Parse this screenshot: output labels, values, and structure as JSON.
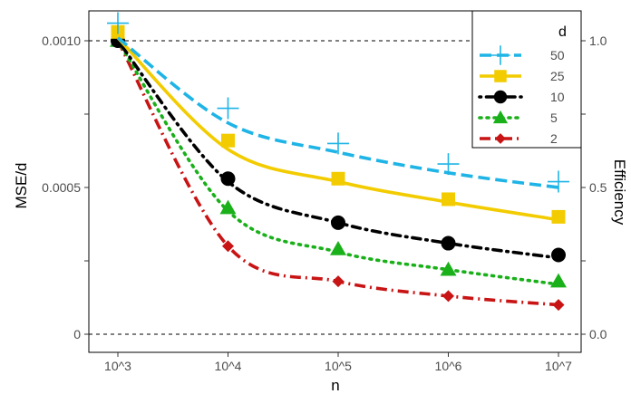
{
  "chart_data": {
    "type": "line",
    "xlabel": "n",
    "ylabel": "MSE/d",
    "y2label": "Efficiency",
    "x_scale": "log10",
    "x_ticks": [
      1000,
      10000,
      100000,
      1000000,
      10000000
    ],
    "x_tick_labels": [
      "10^3",
      "10^4",
      "10^5",
      "10^6",
      "10^7"
    ],
    "ylim": [
      0,
      0.001
    ],
    "y_ticks": [
      0,
      0.0005,
      0.001
    ],
    "y_tick_labels": [
      "0",
      "0.0005",
      "0.0010"
    ],
    "y_minor_ticks": [
      0.00025,
      0.00075
    ],
    "y2lim": [
      0,
      1.0
    ],
    "y2_ticks": [
      0,
      0.5,
      1.0
    ],
    "y2_tick_labels": [
      "0.0",
      "0.5",
      "1.0"
    ],
    "reference_lines": [
      0,
      0.001
    ],
    "legend": {
      "title": "d",
      "position": "top-right"
    },
    "series": [
      {
        "name": "50",
        "color": "#1fb4e6",
        "marker": "plus",
        "dash": "long-dash",
        "points": [
          [
            1000,
            0.00106
          ],
          [
            10000,
            0.00077
          ],
          [
            100000,
            0.00065
          ],
          [
            1000000,
            0.00058
          ],
          [
            10000000,
            0.00052
          ]
        ],
        "curve": [
          [
            1000,
            0.00101
          ],
          [
            10000,
            0.00072
          ],
          [
            100000,
            0.00062
          ],
          [
            1000000,
            0.00055
          ],
          [
            10000000,
            0.0005
          ]
        ]
      },
      {
        "name": "25",
        "color": "#f2cc00",
        "marker": "square",
        "dash": "solid",
        "points": [
          [
            1000,
            0.00103
          ],
          [
            10000,
            0.00066
          ],
          [
            100000,
            0.00053
          ],
          [
            1000000,
            0.00046
          ],
          [
            10000000,
            0.0004
          ]
        ],
        "curve": [
          [
            1000,
            0.00101
          ],
          [
            10000,
            0.00063
          ],
          [
            100000,
            0.00052
          ],
          [
            1000000,
            0.00045
          ],
          [
            10000000,
            0.00039
          ]
        ]
      },
      {
        "name": "10",
        "color": "#000000",
        "marker": "circle",
        "dash": "dot-dash",
        "points": [
          [
            1000,
            0.001
          ],
          [
            10000,
            0.00053
          ],
          [
            100000,
            0.00038
          ],
          [
            1000000,
            0.00031
          ],
          [
            10000000,
            0.00027
          ]
        ],
        "curve": [
          [
            1000,
            0.001
          ],
          [
            10000,
            0.00052
          ],
          [
            100000,
            0.00038
          ],
          [
            1000000,
            0.00031
          ],
          [
            10000000,
            0.00026
          ]
        ]
      },
      {
        "name": "5",
        "color": "#1ab01a",
        "marker": "triangle",
        "dash": "dotted",
        "points": [
          [
            1000,
            0.001
          ],
          [
            10000,
            0.00043
          ],
          [
            100000,
            0.00029
          ],
          [
            1000000,
            0.00022
          ],
          [
            10000000,
            0.00018
          ]
        ],
        "curve": [
          [
            1000,
            0.001
          ],
          [
            10000,
            0.00042
          ],
          [
            100000,
            0.00028
          ],
          [
            1000000,
            0.00022
          ],
          [
            10000000,
            0.00017
          ]
        ]
      },
      {
        "name": "2",
        "color": "#c81414",
        "marker": "diamond",
        "dash": "dash-dot",
        "points": [
          [
            1000,
            0.001
          ],
          [
            10000,
            0.0003
          ],
          [
            100000,
            0.00018
          ],
          [
            1000000,
            0.00013
          ],
          [
            10000000,
            0.0001
          ]
        ],
        "curve": [
          [
            1000,
            0.001
          ],
          [
            10000,
            0.0003
          ],
          [
            100000,
            0.00018
          ],
          [
            1000000,
            0.00013
          ],
          [
            10000000,
            0.0001
          ]
        ]
      }
    ]
  }
}
